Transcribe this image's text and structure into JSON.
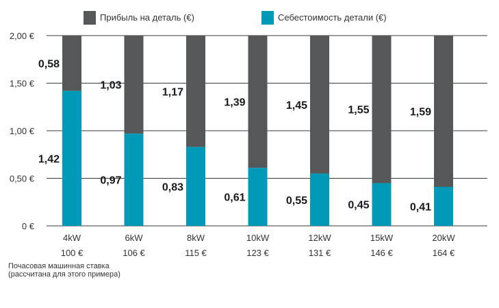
{
  "chart_data": {
    "type": "bar",
    "stacked": true,
    "title": "",
    "xlabel": "",
    "ylabel": "",
    "ylim": [
      0,
      2
    ],
    "yticks": [
      "0 €",
      "0,50 €",
      "1,00 €",
      "1,50 €",
      "2,00 €"
    ],
    "ytick_values": [
      0,
      0.5,
      1,
      1.5,
      2
    ],
    "categories": [
      "4kW",
      "6kW",
      "8kW",
      "10kW",
      "12kW",
      "15kW",
      "20kW"
    ],
    "category_rates": [
      "100 €",
      "106 €",
      "115 €",
      "123 €",
      "131 €",
      "146 €",
      "164 €"
    ],
    "legend_position": "top",
    "series": [
      {
        "name": "Себестоимость детали (€)",
        "color": "#0099b8",
        "values": [
          1.42,
          0.97,
          0.83,
          0.61,
          0.55,
          0.45,
          0.41
        ],
        "labels": [
          "1,42",
          "0,97",
          "0,83",
          "0,61",
          "0,55",
          "0,45",
          "0,41"
        ]
      },
      {
        "name": "Прибыль на деталь (€)",
        "color": "#555759",
        "values": [
          0.58,
          1.03,
          1.17,
          1.39,
          1.45,
          1.55,
          1.59
        ],
        "labels": [
          "0,58",
          "1,03",
          "1,17",
          "1,39",
          "1,45",
          "1,55",
          "1,59"
        ]
      }
    ],
    "grid": true
  },
  "footnote": {
    "line1": "Почасовая машинная ставка",
    "line2": "(рассчитана для этого примера)"
  }
}
